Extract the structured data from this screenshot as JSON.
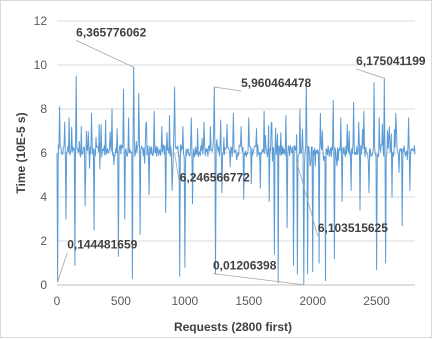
{
  "chart_data": {
    "type": "line",
    "title": "",
    "xlabel": "Requests (2800 first)",
    "ylabel": "Time (10E-5 s)",
    "xlim": [
      0,
      2800
    ],
    "ylim": [
      0,
      12
    ],
    "xticks": [
      0,
      500,
      1000,
      1500,
      2000,
      2500
    ],
    "yticks": [
      0,
      2,
      4,
      6,
      8,
      10,
      12
    ],
    "grid": "horizontal",
    "legend": "none",
    "series_color": "#5b9bd5",
    "baseline": 6.1,
    "series": [
      {
        "spikes": [
          [
            20,
            8.1
          ],
          [
            60,
            7.4
          ],
          [
            95,
            7.6
          ],
          [
            150,
            9.5
          ],
          [
            190,
            7.2
          ],
          [
            230,
            7.0
          ],
          [
            270,
            7.8
          ],
          [
            330,
            7.3
          ],
          [
            380,
            7.5
          ],
          [
            430,
            8.0
          ],
          [
            470,
            7.1
          ],
          [
            520,
            8.9
          ],
          [
            560,
            7.6
          ],
          [
            600,
            9.9
          ],
          [
            640,
            8.7
          ],
          [
            700,
            7.4
          ],
          [
            760,
            7.9
          ],
          [
            820,
            7.2
          ],
          [
            880,
            7.7
          ],
          [
            920,
            9.0
          ],
          [
            960,
            8.5
          ],
          [
            1000,
            7.3
          ],
          [
            1050,
            7.6
          ],
          [
            1100,
            7.1
          ],
          [
            1150,
            7.4
          ],
          [
            1200,
            7.2
          ],
          [
            1230,
            9.0
          ],
          [
            1280,
            7.5
          ],
          [
            1330,
            7.3
          ],
          [
            1380,
            7.8
          ],
          [
            1440,
            7.2
          ],
          [
            1500,
            7.6
          ],
          [
            1560,
            7.1
          ],
          [
            1620,
            7.9
          ],
          [
            1680,
            7.4
          ],
          [
            1730,
            7.2
          ],
          [
            1790,
            7.7
          ],
          [
            1850,
            7.3
          ],
          [
            1900,
            8.0
          ],
          [
            1950,
            9.2
          ],
          [
            2000,
            7.5
          ],
          [
            2060,
            7.8
          ],
          [
            2100,
            7.2
          ],
          [
            2160,
            8.4
          ],
          [
            2220,
            7.6
          ],
          [
            2270,
            7.3
          ],
          [
            2320,
            8.3
          ],
          [
            2360,
            7.4
          ],
          [
            2400,
            7.9
          ],
          [
            2440,
            7.2
          ],
          [
            2480,
            9.2
          ],
          [
            2520,
            7.6
          ],
          [
            2560,
            9.4
          ],
          [
            2600,
            7.2
          ],
          [
            2650,
            7.8
          ],
          [
            2700,
            7.4
          ],
          [
            2750,
            7.6
          ]
        ],
        "dips": [
          [
            5,
            0.144481659
          ],
          [
            70,
            3.0
          ],
          [
            140,
            0.9
          ],
          [
            220,
            3.6
          ],
          [
            290,
            2.5
          ],
          [
            480,
            1.3
          ],
          [
            530,
            3.0
          ],
          [
            590,
            0.3
          ],
          [
            650,
            2.3
          ],
          [
            720,
            4.1
          ],
          [
            850,
            3.3
          ],
          [
            900,
            4.3
          ],
          [
            960,
            0.4
          ],
          [
            1000,
            0.8
          ],
          [
            1060,
            3.7
          ],
          [
            1240,
            0.5
          ],
          [
            1290,
            4.2
          ],
          [
            1460,
            3.9
          ],
          [
            1520,
            4.6
          ],
          [
            1590,
            4.4
          ],
          [
            1660,
            3.8
          ],
          [
            1700,
            1.4
          ],
          [
            1730,
            0.1
          ],
          [
            1800,
            2.6
          ],
          [
            1850,
            0.9
          ],
          [
            1880,
            0.5
          ],
          [
            1930,
            0.01206398
          ],
          [
            1960,
            0.5
          ],
          [
            2000,
            0.6
          ],
          [
            2050,
            1.0
          ],
          [
            2100,
            0.2
          ],
          [
            2170,
            1.2
          ],
          [
            2230,
            3.8
          ],
          [
            2300,
            4.3
          ],
          [
            2370,
            3.4
          ],
          [
            2440,
            4.2
          ],
          [
            2500,
            0.7
          ],
          [
            2570,
            1.0
          ],
          [
            2620,
            4.0
          ],
          [
            2700,
            2.7
          ],
          [
            2760,
            4.3
          ]
        ]
      }
    ],
    "annotations": [
      {
        "text": "6,365776062",
        "x": 600,
        "y": 9.9,
        "tx": 150,
        "ty": 11.3
      },
      {
        "text": "5,960464478",
        "x": 1230,
        "y": 9.0,
        "tx": 1440,
        "ty": 9.0
      },
      {
        "text": "6,175041199",
        "x": 2560,
        "y": 9.4,
        "tx": 2340,
        "ty": 10.0
      },
      {
        "text": "6,246566772",
        "x": 920,
        "y": 6.0,
        "tx": 960,
        "ty": 4.7
      },
      {
        "text": "6,103515625",
        "x": 1870,
        "y": 5.7,
        "tx": 2040,
        "ty": 2.4
      },
      {
        "text": "0,144481659",
        "x": 5,
        "y": 0.144481659,
        "tx": 80,
        "ty": 1.65
      },
      {
        "text": "0,01206398",
        "x": 1930,
        "y": 0.01206398,
        "tx": 1220,
        "ty": 0.7
      }
    ]
  }
}
